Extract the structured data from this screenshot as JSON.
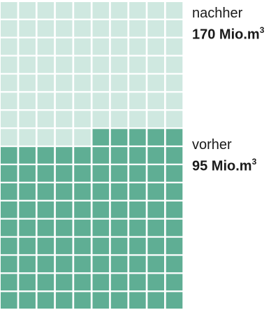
{
  "chart_data": {
    "type": "waffle",
    "grid": {
      "rows": 17,
      "cols": 10
    },
    "unit": "Mio.m³",
    "series": [
      {
        "name": "nachher",
        "value_text": "170 Mio.m",
        "superscript": "3",
        "value": 170,
        "color": "#cfe8e0"
      },
      {
        "name": "vorher",
        "value_text": "95 Mio.m",
        "superscript": "3",
        "value": 95,
        "color": "#5fae94"
      }
    ],
    "cells_before": 95,
    "cells_total": 170
  }
}
